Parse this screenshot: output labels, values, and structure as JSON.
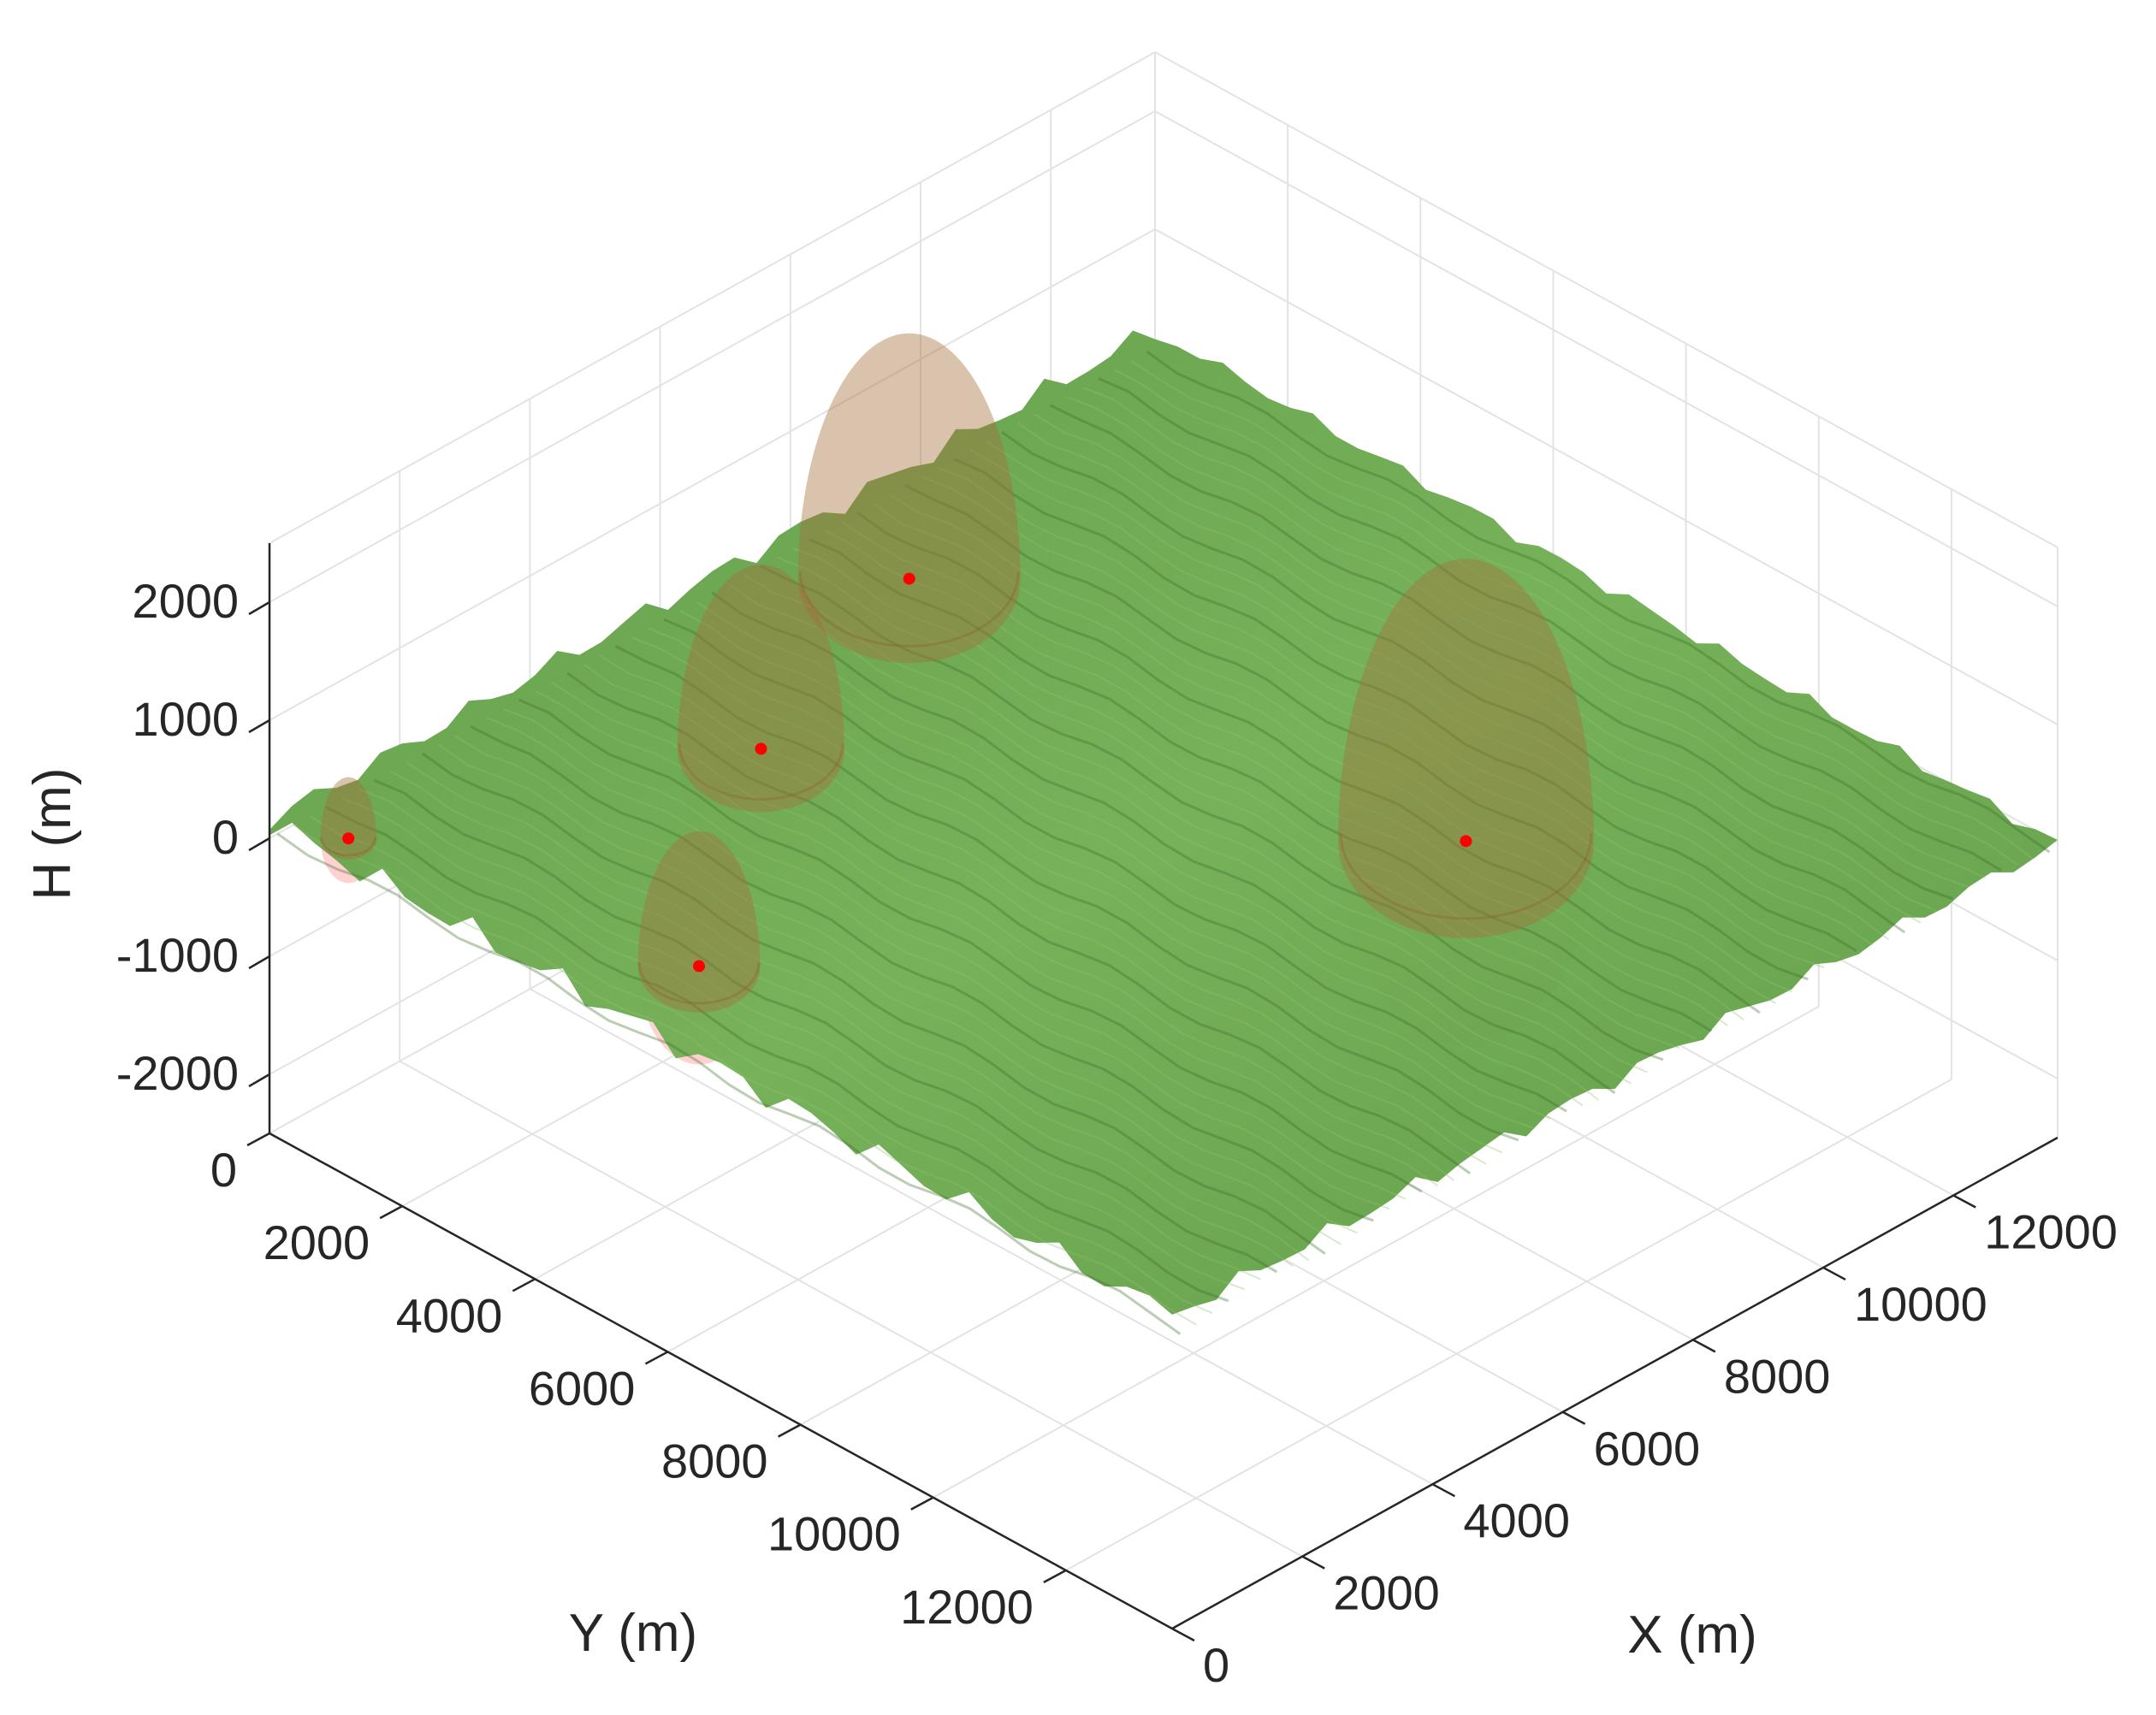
{
  "chart_data": {
    "type": "surface3d",
    "title": "",
    "xlabel": "X (m)",
    "ylabel": "Y (m)",
    "zlabel": "H (m)",
    "xlim": [
      0,
      13600
    ],
    "ylim": [
      0,
      13600
    ],
    "zlim": [
      -2500,
      2500
    ],
    "x_ticks": [
      0,
      2000,
      4000,
      6000,
      8000,
      10000,
      12000
    ],
    "y_ticks": [
      0,
      2000,
      4000,
      6000,
      8000,
      10000,
      12000
    ],
    "z_ticks": [
      -2000,
      -1000,
      0,
      1000,
      2000
    ],
    "x_tick_labels": [
      "0",
      "2000",
      "4000",
      "6000",
      "8000",
      "10000",
      "12000"
    ],
    "y_tick_labels": [
      "0",
      "2000",
      "4000",
      "6000",
      "8000",
      "10000",
      "12000"
    ],
    "z_tick_labels": [
      "-2000",
      "-1000",
      "0",
      "1000",
      "2000"
    ],
    "grid": true,
    "surface_color": "#6aa84f",
    "sphere_color": "#f4a0a0",
    "marker_color": "#ff0000",
    "spheres": [
      {
        "x": 9100,
        "y": 9100,
        "z": 0,
        "r": 2300
      },
      {
        "x": 8500,
        "y": 1300,
        "z": 0,
        "r": 2000
      },
      {
        "x": 5000,
        "y": 2500,
        "z": 0,
        "r": 1500
      },
      {
        "x": 1500,
        "y": 5000,
        "z": 0,
        "r": 1100
      },
      {
        "x": 600,
        "y": 600,
        "z": 0,
        "r": 500
      }
    ]
  }
}
